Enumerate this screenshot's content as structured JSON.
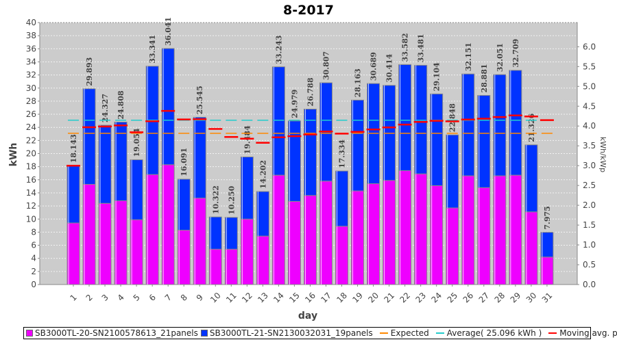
{
  "chart_data": {
    "type": "bar",
    "stacked": true,
    "title": "8-2017",
    "xlabel": "day",
    "ylabel": "kWh",
    "ylabel_right": "kWh/kWp",
    "ylim": [
      0,
      40
    ],
    "ylim_right": [
      0,
      6.61
    ],
    "yticks": [
      0,
      2,
      4,
      6,
      8,
      10,
      12,
      14,
      16,
      18,
      20,
      22,
      24,
      26,
      28,
      30,
      32,
      34,
      36,
      38,
      40
    ],
    "yticks_right": [
      "0.0",
      "0.5",
      "1.0",
      "1.5",
      "2.0",
      "2.5",
      "3.0",
      "3.5",
      "4.0",
      "4.5",
      "5.0",
      "5.5",
      "6.0"
    ],
    "grid": true,
    "legend_placement": "bottom",
    "categories": [
      "1",
      "2",
      "3",
      "4",
      "5",
      "6",
      "7",
      "8",
      "9",
      "10",
      "11",
      "12",
      "13",
      "14",
      "15",
      "16",
      "17",
      "18",
      "19",
      "20",
      "21",
      "22",
      "23",
      "24",
      "25",
      "26",
      "27",
      "28",
      "29",
      "30",
      "31"
    ],
    "totals": [
      "18.143",
      "29.893",
      "24.327",
      "24.808",
      "19.054",
      "33.341",
      "36.041",
      "16.091",
      "25.545",
      "10.322",
      "10.250",
      "19.484",
      "14.202",
      "33.243",
      "24.979",
      "26.788",
      "30.807",
      "17.334",
      "28.163",
      "30.689",
      "30.414",
      "33.582",
      "33.481",
      "29.104",
      "22.848",
      "32.151",
      "28.881",
      "32.051",
      "32.709",
      "21.326",
      "7.975"
    ],
    "series": [
      {
        "name": "SB3000TL-20-SN2100578613_21panels",
        "color": "#ee00ff",
        "values": [
          9.4,
          15.3,
          12.4,
          12.8,
          9.9,
          16.8,
          18.3,
          8.3,
          13.2,
          5.4,
          5.4,
          10.0,
          7.4,
          16.7,
          12.7,
          13.6,
          15.8,
          8.9,
          14.3,
          15.4,
          15.9,
          17.4,
          16.9,
          15.1,
          11.7,
          16.6,
          14.8,
          16.6,
          16.7,
          11.1,
          4.2
        ]
      },
      {
        "name": "SB3000TL-21-SN2130032031_19panels",
        "color": "#0033ff",
        "values": [
          8.743,
          14.593,
          11.927,
          12.008,
          9.154,
          16.541,
          17.741,
          7.791,
          12.345,
          4.922,
          4.85,
          9.484,
          6.802,
          16.543,
          12.279,
          13.188,
          15.007,
          8.434,
          13.863,
          15.289,
          14.514,
          16.182,
          16.581,
          14.004,
          11.148,
          15.551,
          14.081,
          15.451,
          16.009,
          10.226,
          3.775
        ]
      }
    ],
    "lines": [
      {
        "name": "Expected",
        "color": "#ff8800",
        "value": 23.1
      },
      {
        "name": "Average( 25.096 kWh )",
        "color": "#22cccc",
        "value": 25.096
      },
      {
        "name": "Moving avg. per day.",
        "color": "#ff0000",
        "values": [
          18.14,
          24.02,
          24.12,
          24.29,
          23.25,
          24.93,
          26.52,
          25.21,
          25.25,
          23.76,
          22.53,
          22.27,
          21.65,
          22.48,
          22.65,
          22.91,
          23.37,
          23.04,
          23.31,
          23.68,
          24.0,
          24.43,
          24.83,
          25.0,
          24.92,
          25.2,
          25.33,
          25.57,
          25.82,
          25.67,
          25.1
        ]
      }
    ]
  }
}
